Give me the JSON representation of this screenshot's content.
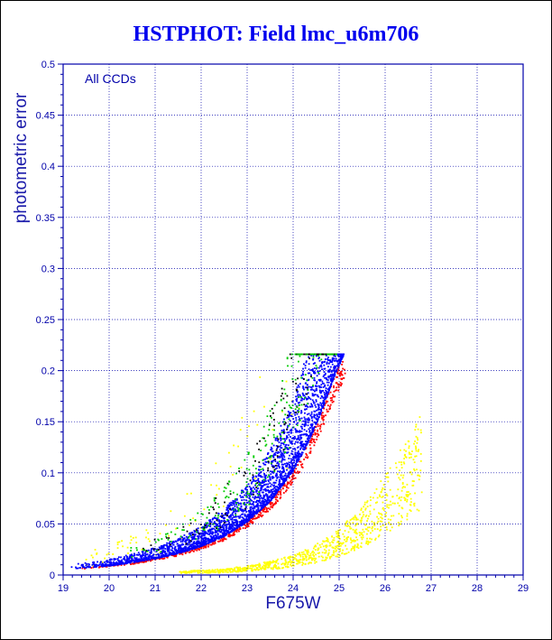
{
  "chart_data": {
    "type": "scatter",
    "title": "HSTPHOT: Field lmc_u6m706",
    "annotation": "All CCDs",
    "xlabel": "F675W",
    "ylabel": "photometric error",
    "xlim": [
      19,
      29
    ],
    "ylim": [
      0,
      0.5
    ],
    "x_ticks": [
      "19",
      "20",
      "21",
      "22",
      "23",
      "24",
      "25",
      "26",
      "27",
      "28",
      "29"
    ],
    "y_ticks": [
      "0",
      "0.05",
      "0.1",
      "0.15",
      "0.2",
      "0.25",
      "0.3",
      "0.35",
      "0.4",
      "0.45",
      "0.5"
    ],
    "grid": true,
    "colors": {
      "title": "#0000ee",
      "axis": "#0000aa",
      "grid": "#0000aa",
      "tick_labels": "#0000aa",
      "axis_labels": "#1a1aaa",
      "points_main": "#0000ff",
      "points_edge_red": "#ff0000",
      "points_green": "#00cc00",
      "points_dark": "#000000",
      "points_yellow": "#ffff00"
    },
    "series": [
      {
        "color_key": "points_main",
        "envelope_x": [
          19.1,
          19.5,
          20.0,
          20.5,
          21.0,
          21.5,
          22.0,
          22.5,
          23.0,
          23.5,
          24.0,
          24.3,
          24.6,
          24.9,
          25.1
        ],
        "envelope_y": [
          0.006,
          0.007,
          0.009,
          0.012,
          0.016,
          0.021,
          0.028,
          0.038,
          0.052,
          0.072,
          0.102,
          0.127,
          0.158,
          0.195,
          0.215
        ]
      },
      {
        "color_key": "points_yellow",
        "envelope_x": [
          22.0,
          22.5,
          23.0,
          23.5,
          24.0,
          24.5,
          25.0,
          25.5,
          26.0,
          26.5,
          27.0
        ],
        "envelope_y": [
          0.003,
          0.004,
          0.006,
          0.009,
          0.013,
          0.02,
          0.03,
          0.045,
          0.065,
          0.09,
          0.12
        ]
      }
    ]
  }
}
